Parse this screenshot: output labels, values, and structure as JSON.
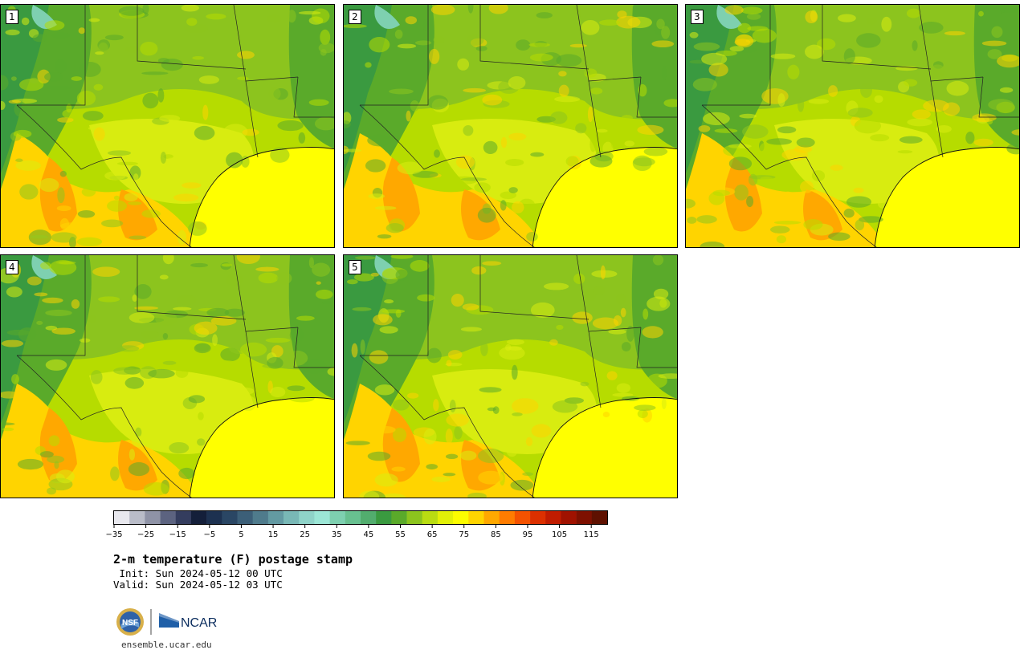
{
  "chart_data": {
    "type": "heatmap",
    "title": "2-m temperature (F) postage stamp",
    "init": " Init: Sun 2024-05-12 00 UTC",
    "valid": "Valid: Sun 2024-05-12 03 UTC",
    "panels": [
      "1",
      "2",
      "3",
      "4",
      "5"
    ],
    "colorbar": {
      "min": -35,
      "max": 120,
      "step": 5,
      "tick_values": [
        -35,
        -25,
        -15,
        -5,
        5,
        15,
        25,
        35,
        45,
        55,
        65,
        75,
        85,
        95,
        105,
        115
      ],
      "tick_labels": [
        "−35",
        "−25",
        "−15",
        "−5",
        "5",
        "15",
        "25",
        "35",
        "45",
        "55",
        "65",
        "75",
        "85",
        "95",
        "105",
        "115"
      ],
      "colors": [
        "#e8e8ee",
        "#b9bcc8",
        "#8f93a6",
        "#5c6380",
        "#343d5e",
        "#141f3a",
        "#1d3150",
        "#2a4664",
        "#3c5f78",
        "#4f7b8c",
        "#639aa2",
        "#79b8b6",
        "#8fd3c8",
        "#9ce6d6",
        "#7ed0b0",
        "#68c090",
        "#52ad6e",
        "#3a9a40",
        "#5aaa2a",
        "#8cc41e",
        "#b9dc12",
        "#e2f008",
        "#fcfc00",
        "#ffd400",
        "#ffa800",
        "#ff7c00",
        "#f45200",
        "#dc3000",
        "#c01c00",
        "#a01200",
        "#7e1000",
        "#5e1000"
      ]
    },
    "map_colors": {
      "ocean": "#ffff00",
      "warm": "#ffd400",
      "hot": "#ffa800",
      "mild": "#d8ec10",
      "cool": "#b6dc00",
      "green": "#8cc41e",
      "dark_green": "#5aaa2a",
      "forest": "#3a9a40",
      "teal": "#7ed0b0"
    }
  },
  "footer": {
    "url": "ensemble.ucar.edu",
    "logo_nsf": "NSF",
    "logo_ncar": "NCAR"
  }
}
